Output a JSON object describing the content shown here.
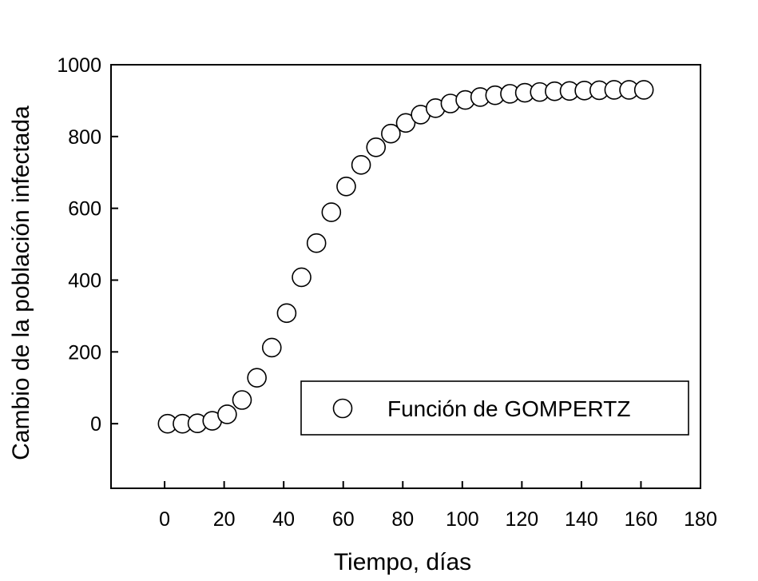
{
  "chart_data": {
    "type": "scatter",
    "title": "",
    "xlabel": "Tiempo, días",
    "ylabel": "Cambio de la población infectada",
    "xlim": [
      -18,
      180
    ],
    "ylim": [
      -180,
      1000
    ],
    "xticks": [
      0,
      20,
      40,
      60,
      80,
      100,
      120,
      140,
      160,
      180
    ],
    "xtick_labels": [
      "0",
      "20",
      "40",
      "60",
      "80",
      "100",
      "120",
      "140",
      "160",
      "180"
    ],
    "yticks": [
      0,
      200,
      400,
      600,
      800,
      1000
    ],
    "ytick_labels": [
      "0",
      "200",
      "400",
      "600",
      "800",
      "1000"
    ],
    "grid": false,
    "legend_position": "bottom-right",
    "series": [
      {
        "name": "Función de GOMPERTZ",
        "marker": "open-circle",
        "color": "#000000",
        "x": [
          1,
          6,
          11,
          16,
          21,
          26,
          31,
          36,
          41,
          46,
          51,
          56,
          61,
          66,
          71,
          76,
          81,
          86,
          91,
          96,
          101,
          106,
          111,
          116,
          121,
          126,
          131,
          136,
          141,
          146,
          151,
          156,
          161
        ],
        "y": [
          0,
          0,
          1,
          8,
          26,
          66,
          128,
          212,
          308,
          408,
          503,
          589,
          661,
          721,
          770,
          808,
          838,
          861,
          879,
          892,
          902,
          910,
          915,
          919,
          922,
          924,
          926,
          927,
          928,
          929,
          930,
          930,
          930
        ]
      }
    ]
  }
}
